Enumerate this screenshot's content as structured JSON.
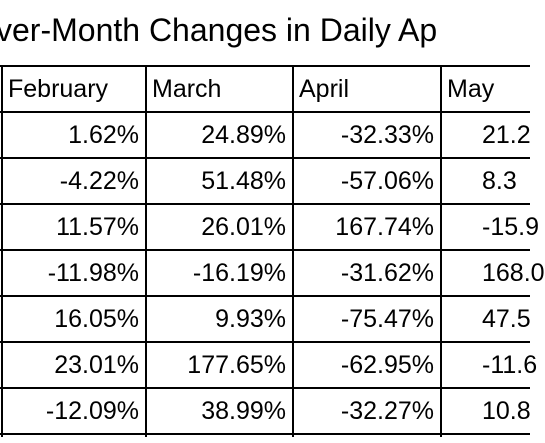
{
  "title": "ver-Month Changes in Daily Ap",
  "table": {
    "header": [
      "February",
      "March",
      "April",
      "May"
    ],
    "rows": [
      [
        "1.62%",
        "24.89%",
        "-32.33%",
        "21.2"
      ],
      [
        "-4.22%",
        "51.48%",
        "-57.06%",
        "8.3"
      ],
      [
        "11.57%",
        "26.01%",
        "167.74%",
        "-15.9"
      ],
      [
        "-11.98%",
        "-16.19%",
        "-31.62%",
        "168.0"
      ],
      [
        "16.05%",
        "9.93%",
        "-75.47%",
        "47.5"
      ],
      [
        "23.01%",
        "177.65%",
        "-62.95%",
        "-11.6"
      ],
      [
        "-12.09%",
        "38.99%",
        "-32.27%",
        "10.8"
      ]
    ]
  }
}
